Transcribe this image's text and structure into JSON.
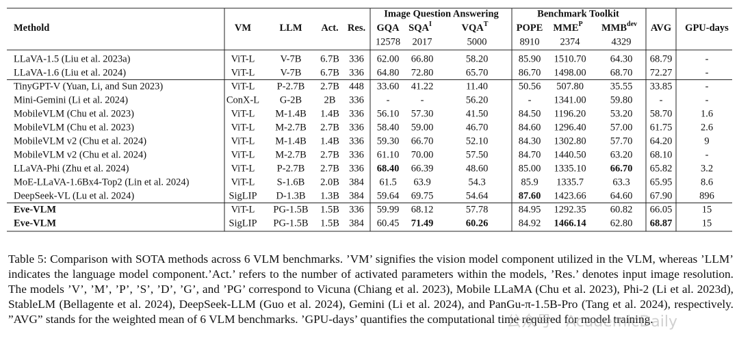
{
  "table": {
    "group_headers": [
      "Image Question Answering",
      "Benchmark Toolkit"
    ],
    "columns": [
      {
        "label": "Methold"
      },
      {
        "label": "VM"
      },
      {
        "label": "LLM"
      },
      {
        "label": "Act."
      },
      {
        "label": "Res."
      },
      {
        "label": "GQA"
      },
      {
        "label": "SQA",
        "sup": "I"
      },
      {
        "label": "VQA",
        "sup": "T"
      },
      {
        "label": "POPE"
      },
      {
        "label": "MME",
        "sup": "P"
      },
      {
        "label": "MMB",
        "sup": "dev"
      },
      {
        "label": "AVG"
      },
      {
        "label": "GPU-days"
      }
    ],
    "sample_counts": [
      "12578",
      "2017",
      "5000",
      "8910",
      "2374",
      "4329"
    ],
    "groups": [
      [
        {
          "cells": [
            "LLaVA-1.5 (Liu et al. 2023a)",
            "ViT-L",
            "V-7B",
            "6.7B",
            "336",
            "62.00",
            "66.80",
            "58.20",
            "85.90",
            "1510.70",
            "64.30",
            "68.79",
            "-"
          ],
          "bold": []
        },
        {
          "cells": [
            "LLaVA-1.6 (Liu et al. 2024)",
            "ViT-L",
            "V-7B",
            "6.7B",
            "336",
            "64.80",
            "72.80",
            "65.70",
            "86.70",
            "1498.00",
            "68.70",
            "72.27",
            "-"
          ],
          "bold": []
        }
      ],
      [
        {
          "cells": [
            "TinyGPT-V (Yuan, Li, and Sun 2023)",
            "ViT-L",
            "P-2.7B",
            "2.7B",
            "448",
            "33.60",
            "41.22",
            "11.40",
            "50.56",
            "507.80",
            "35.55",
            "33.85",
            "-"
          ],
          "bold": []
        },
        {
          "cells": [
            "Mini-Gemini (Li et al. 2024)",
            "ConX-L",
            "G-2B",
            "2B",
            "336",
            "-",
            "-",
            "56.20",
            "-",
            "1341.00",
            "59.80",
            "-",
            "-"
          ],
          "bold": []
        },
        {
          "cells": [
            "MobileVLM (Chu et al. 2023)",
            "ViT-L",
            "M-1.4B",
            "1.4B",
            "336",
            "56.10",
            "57.30",
            "41.50",
            "84.50",
            "1196.20",
            "53.20",
            "58.70",
            "1.6"
          ],
          "bold": []
        },
        {
          "cells": [
            "MobileVLM (Chu et al. 2023)",
            "ViT-L",
            "M-2.7B",
            "2.7B",
            "336",
            "58.40",
            "59.00",
            "46.70",
            "84.60",
            "1296.40",
            "57.00",
            "61.75",
            "2.6"
          ],
          "bold": []
        },
        {
          "cells": [
            "MobileVLM v2 (Chu et al. 2024)",
            "ViT-L",
            "M-1.4B",
            "1.4B",
            "336",
            "59.30",
            "66.70",
            "52.10",
            "84.30",
            "1302.80",
            "57.70",
            "64.20",
            "9"
          ],
          "bold": []
        },
        {
          "cells": [
            "MobileVLM v2 (Chu et al. 2024)",
            "ViT-L",
            "M-2.7B",
            "2.7B",
            "336",
            "61.10",
            "70.00",
            "57.50",
            "84.70",
            "1440.50",
            "63.20",
            "68.10",
            "-"
          ],
          "bold": []
        },
        {
          "cells": [
            "LLaVA-Phi (Zhu et al. 2024)",
            "ViT-L",
            "P-2.7B",
            "2.7B",
            "336",
            "68.40",
            "66.39",
            "48.60",
            "85.00",
            "1335.10",
            "66.70",
            "65.82",
            "3.2"
          ],
          "bold": [
            5,
            10
          ]
        },
        {
          "cells": [
            "MoE-LLaVA-1.6Bx4-Top2 (Lin et al. 2024)",
            "ViT-L",
            "S-1.6B",
            "2.0B",
            "384",
            "61.5",
            "63.9",
            "54.3",
            "85.9",
            "1335.7",
            "63.3",
            "65.95",
            "8.6"
          ],
          "bold": []
        },
        {
          "cells": [
            "DeepSeek-VL (Lu et al. 2024)",
            "SigLIP",
            "D-1.3B",
            "1.3B",
            "384",
            "59.64",
            "69.75",
            "54.64",
            "87.60",
            "1423.66",
            "64.60",
            "67.90",
            "896"
          ],
          "bold": [
            8
          ]
        }
      ],
      [
        {
          "cells": [
            "Eve-VLM",
            "ViT-L",
            "PG-1.5B",
            "1.5B",
            "336",
            "59.99",
            "68.12",
            "57.78",
            "84.95",
            "1292.35",
            "60.82",
            "66.05",
            "15"
          ],
          "bold": [
            0
          ]
        },
        {
          "cells": [
            "Eve-VLM",
            "SigLIP",
            "PG-1.5B",
            "1.5B",
            "384",
            "60.45",
            "71.49",
            "60.26",
            "84.92",
            "1466.14",
            "62.80",
            "68.87",
            "15"
          ],
          "bold": [
            0,
            6,
            7,
            9,
            11
          ]
        }
      ]
    ]
  },
  "caption": "Table 5: Comparison with SOTA methods across 6 VLM benchmarks. ’VM’ signifies the vision model component utilized in the VLM, whereas ’LLM’ indicates the language model component.’Act.’ refers to the number of activated parameters within the models, ’Res.’ denotes input image resolution. The models ’V’, ’M’, ’P’, ’S’, ’D’, ’G’, and ’PG’ correspond to Vicuna (Chiang et al. 2023), Mobile LLaMA (Chu et al. 2023), Phi-2 (Li et al. 2023d), StableLM (Bellagente et al. 2024), DeepSeek-LLM (Guo et al. 2024), Gemini (Li et al. 2024), and PanGu-π-1.5B-Pro (Tang et al. 2024), respectively. ”AVG” stands for the weighted mean of 6 VLM benchmarks. ’GPU-days’ quantifies the computational time required for model training.",
  "watermark": "公众号 · AcademicDaily"
}
